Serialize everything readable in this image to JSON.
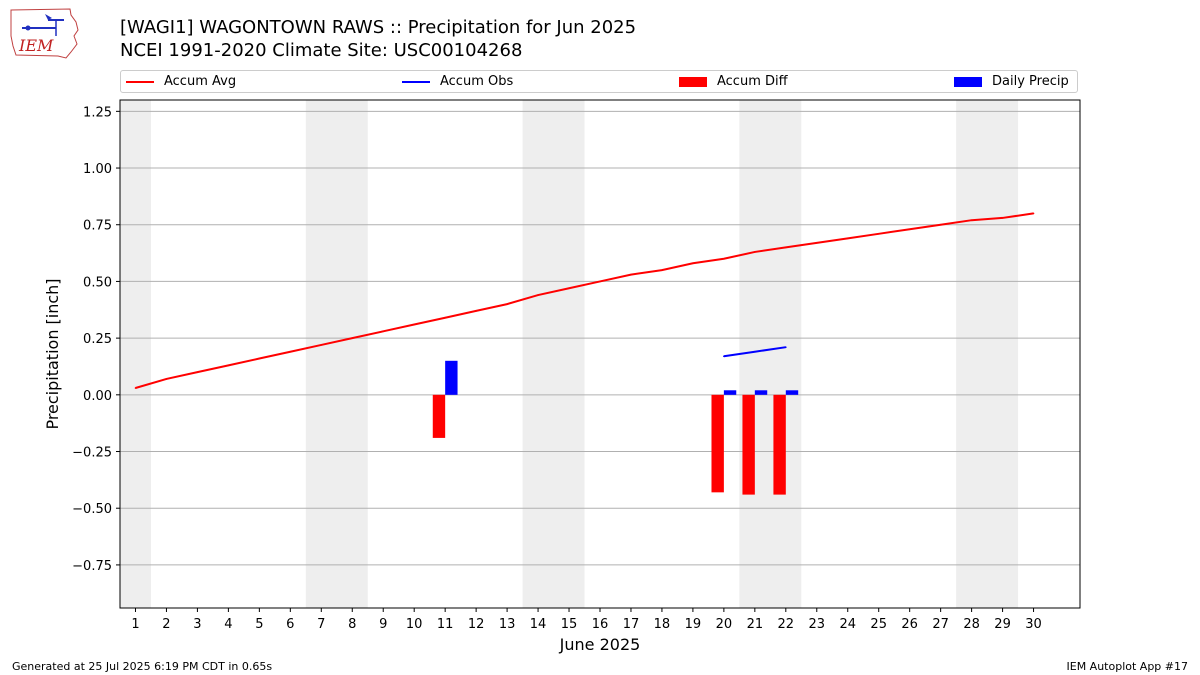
{
  "header": {
    "title_line1": "[WAGI1] WAGONTOWN RAWS :: Precipitation for Jun 2025",
    "title_line2": "NCEI 1991-2020 Climate Site: USC00104268",
    "logo_text": "IEM"
  },
  "legend": [
    {
      "label": "Accum Avg",
      "kind": "line",
      "color": "#ff0000"
    },
    {
      "label": "Accum Obs",
      "kind": "line",
      "color": "#0000ff"
    },
    {
      "label": "Accum Diff",
      "kind": "bar",
      "color": "#ff0000"
    },
    {
      "label": "Daily Precip",
      "kind": "bar",
      "color": "#0000ff"
    }
  ],
  "chart_data": {
    "type": "bar",
    "title": "[WAGI1] WAGONTOWN RAWS :: Precipitation for Jun 2025",
    "subtitle": "NCEI 1991-2020 Climate Site: USC00104268",
    "xlabel": "June 2025",
    "ylabel": "Precipitation [inch]",
    "xlim": [
      0.5,
      31.5
    ],
    "ylim": [
      -0.94,
      1.3
    ],
    "x_ticks": [
      1,
      2,
      3,
      4,
      5,
      6,
      7,
      8,
      9,
      10,
      11,
      12,
      13,
      14,
      15,
      16,
      17,
      18,
      19,
      20,
      21,
      22,
      23,
      24,
      25,
      26,
      27,
      28,
      29,
      30
    ],
    "y_ticks": [
      -0.75,
      -0.5,
      -0.25,
      0.0,
      0.25,
      0.5,
      0.75,
      1.0,
      1.25
    ],
    "y_tick_labels": [
      "−0.75",
      "−0.50",
      "−0.25",
      "0.00",
      "0.25",
      "0.50",
      "0.75",
      "1.00",
      "1.25"
    ],
    "weekend_bands": [
      [
        0.5,
        1.5
      ],
      [
        6.5,
        8.5
      ],
      [
        13.5,
        15.5
      ],
      [
        20.5,
        22.5
      ],
      [
        27.5,
        29.5
      ]
    ],
    "grid": "horizontal",
    "legend_position": "top",
    "series": [
      {
        "name": "Accum Avg",
        "kind": "line",
        "color": "#ff0000",
        "x": [
          1,
          2,
          3,
          4,
          5,
          6,
          7,
          8,
          9,
          10,
          11,
          12,
          13,
          14,
          15,
          16,
          17,
          18,
          19,
          20,
          21,
          22,
          23,
          24,
          25,
          26,
          27,
          28,
          29,
          30
        ],
        "values": [
          0.03,
          0.07,
          0.1,
          0.13,
          0.16,
          0.19,
          0.22,
          0.25,
          0.28,
          0.31,
          0.34,
          0.37,
          0.4,
          0.44,
          0.47,
          0.5,
          0.53,
          0.55,
          0.58,
          0.6,
          0.63,
          0.65,
          0.67,
          0.69,
          0.71,
          0.73,
          0.75,
          0.77,
          0.78,
          0.8
        ]
      },
      {
        "name": "Accum Obs",
        "kind": "line",
        "color": "#0000ff",
        "x": [
          20,
          21,
          22
        ],
        "values": [
          0.17,
          0.19,
          0.21
        ]
      },
      {
        "name": "Accum Diff",
        "kind": "bar",
        "color": "#ff0000",
        "x": [
          11,
          20,
          21,
          22
        ],
        "values": [
          -0.19,
          -0.43,
          -0.44,
          -0.44
        ]
      },
      {
        "name": "Daily Precip",
        "kind": "bar",
        "color": "#0000ff",
        "x": [
          11,
          20,
          21,
          22
        ],
        "values": [
          0.15,
          0.02,
          0.02,
          0.02
        ]
      }
    ]
  },
  "footer": {
    "left": "Generated at 25 Jul 2025 6:19 PM CDT in 0.65s",
    "right": "IEM Autoplot App #17"
  }
}
